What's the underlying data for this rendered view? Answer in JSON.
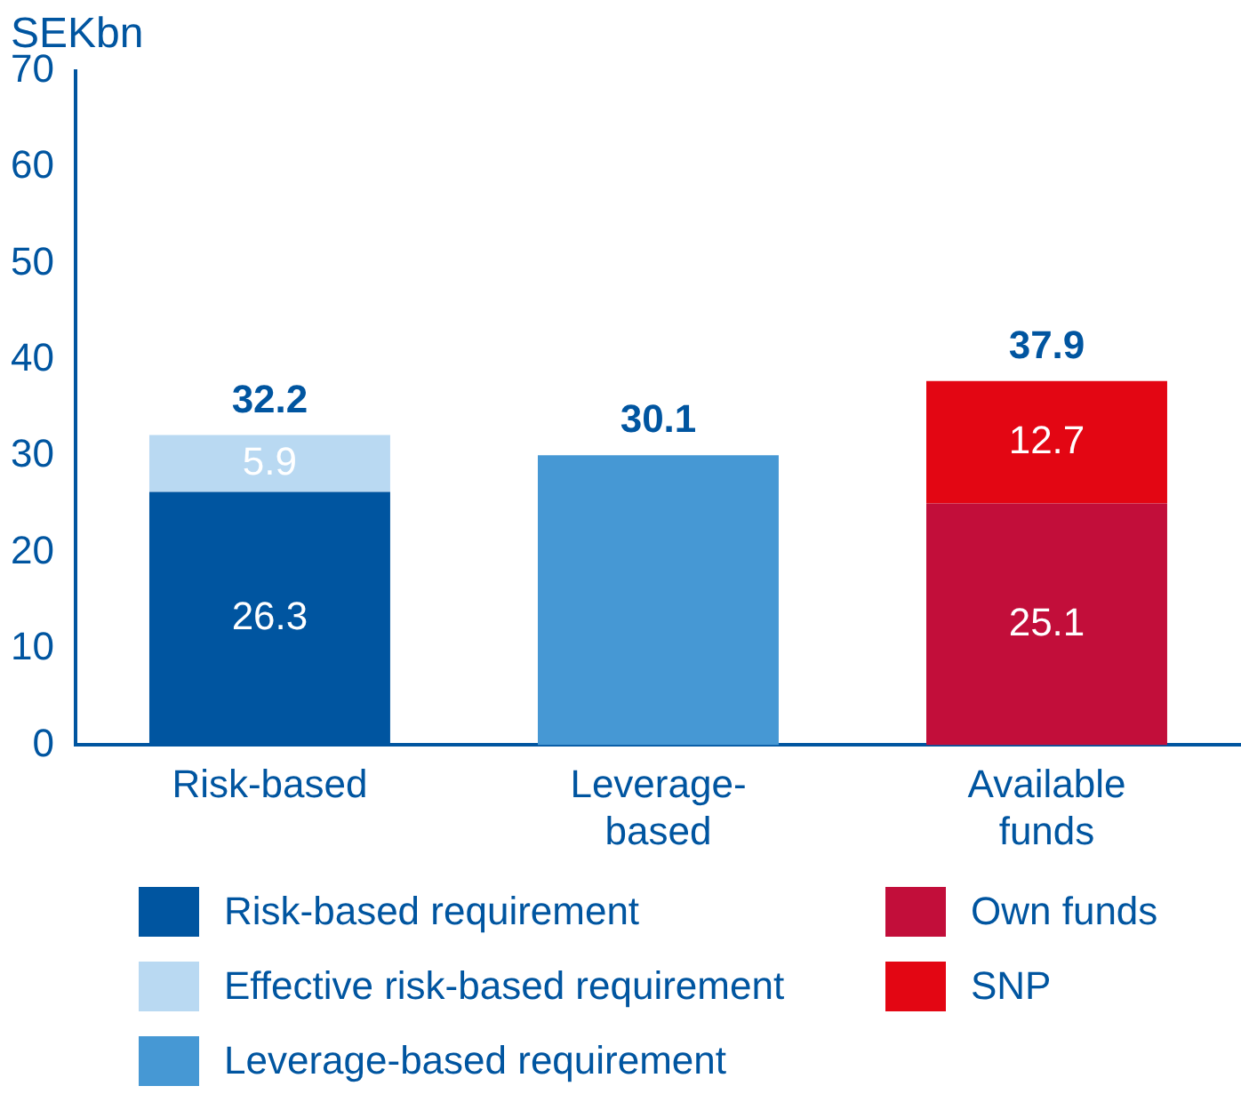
{
  "chart_data": {
    "type": "bar",
    "ylabel": "SEKbn",
    "categories": [
      "Risk-based",
      "Leverage-based",
      "Available funds"
    ],
    "stacked": true,
    "ylim": [
      0,
      70
    ],
    "yticks": [
      0,
      10,
      20,
      30,
      40,
      50,
      60,
      70
    ],
    "grid": false,
    "legend": "bottom",
    "totals": [
      "32.2",
      "30.1",
      "37.9"
    ],
    "series": [
      {
        "name": "Risk-based requirement",
        "color": "#0055a0",
        "values": [
          26.3,
          null,
          null
        ],
        "value_labels": [
          "26.3",
          null,
          null
        ]
      },
      {
        "name": "Effective risk-based requirement",
        "color": "#b9d9f2",
        "values": [
          5.9,
          null,
          null
        ],
        "value_labels": [
          "5.9",
          null,
          null
        ]
      },
      {
        "name": "Leverage-based requirement",
        "color": "#4698d4",
        "values": [
          null,
          30.1,
          null
        ]
      },
      {
        "name": "Own funds",
        "color": "#c20e3a",
        "values": [
          null,
          null,
          25.1
        ],
        "value_labels": [
          null,
          null,
          "25.1"
        ]
      },
      {
        "name": "SNP",
        "color": "#e30613",
        "values": [
          null,
          null,
          12.7
        ],
        "value_labels": [
          null,
          null,
          "12.7"
        ]
      }
    ]
  }
}
